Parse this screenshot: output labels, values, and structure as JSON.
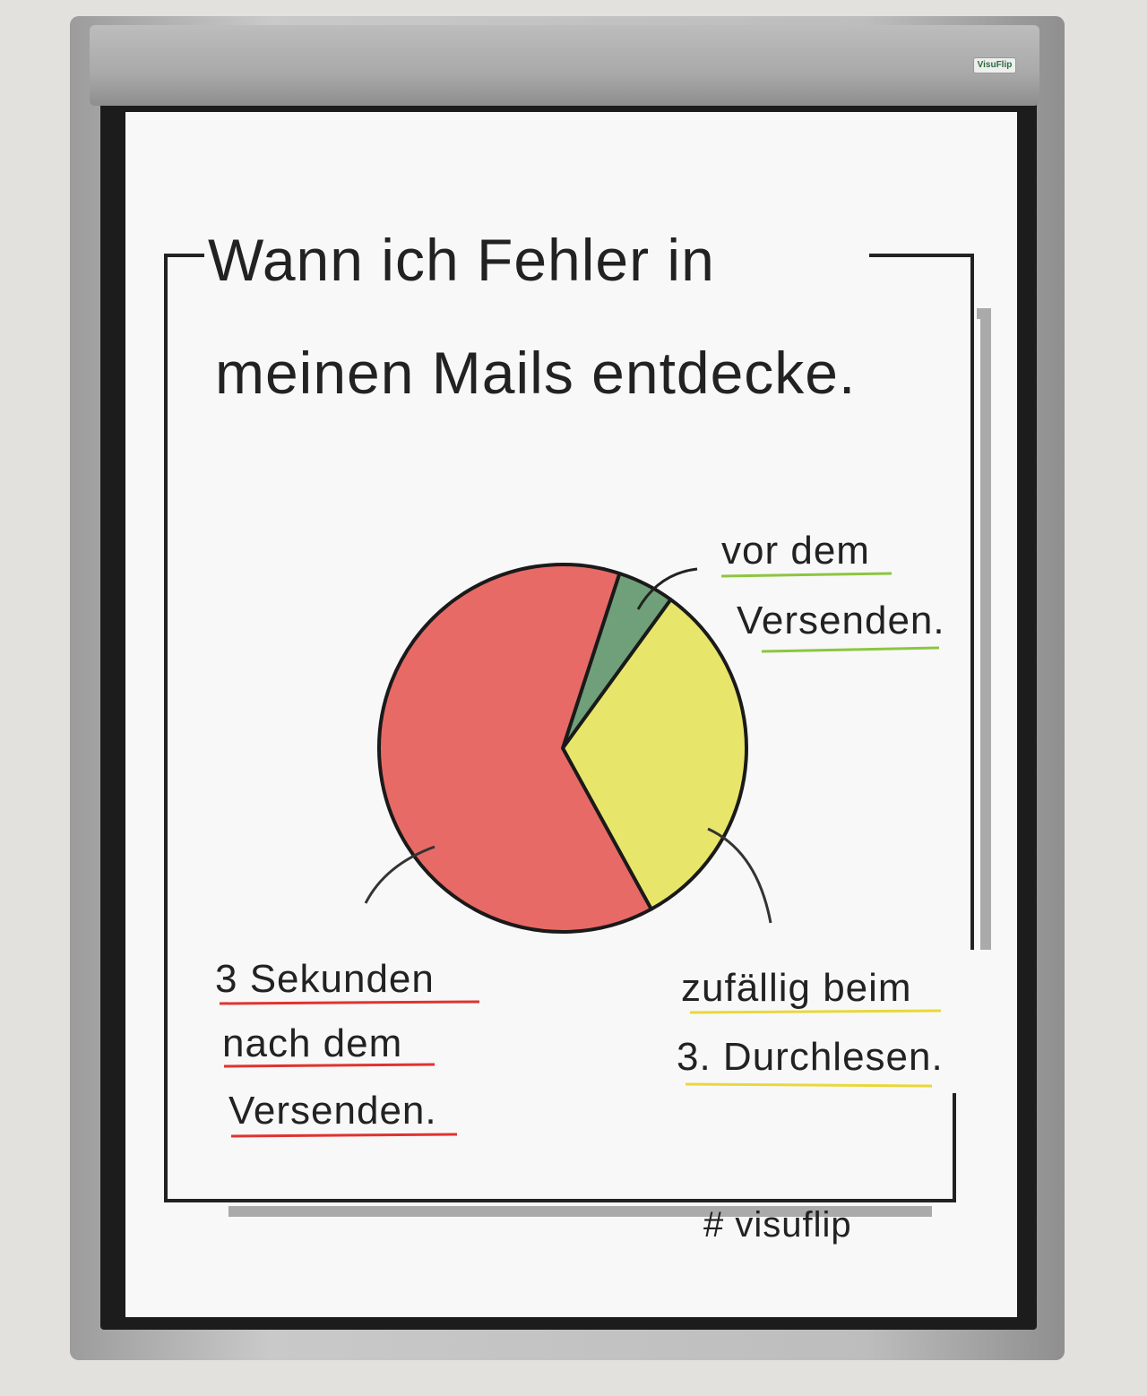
{
  "title_line1": "Wann ich Fehler in",
  "title_line2": "meinen Mails entdecke.",
  "hashtag": "# visuflip",
  "logo": "VisuFlip",
  "chart_data": {
    "type": "pie",
    "title": "Wann ich Fehler in meinen Mails entdecke.",
    "slices": [
      {
        "label": "vor dem Versenden.",
        "label_lines": [
          "vor dem",
          "Versenden."
        ],
        "value": 5,
        "color": "#6fa079"
      },
      {
        "label": "zufällig beim 3. Durchlesen.",
        "label_lines": [
          "zufällig beim",
          "3. Durchlesen."
        ],
        "value": 32,
        "color": "#e8e66a"
      },
      {
        "label": "3 Sekunden nach dem Versenden.",
        "label_lines": [
          "3 Sekunden",
          "nach dem",
          "Versenden."
        ],
        "value": 63,
        "color": "#e86a66"
      }
    ],
    "underline_colors": {
      "green": "#8cc63f",
      "yellow": "#e8d83a",
      "red": "#e0332f"
    }
  }
}
